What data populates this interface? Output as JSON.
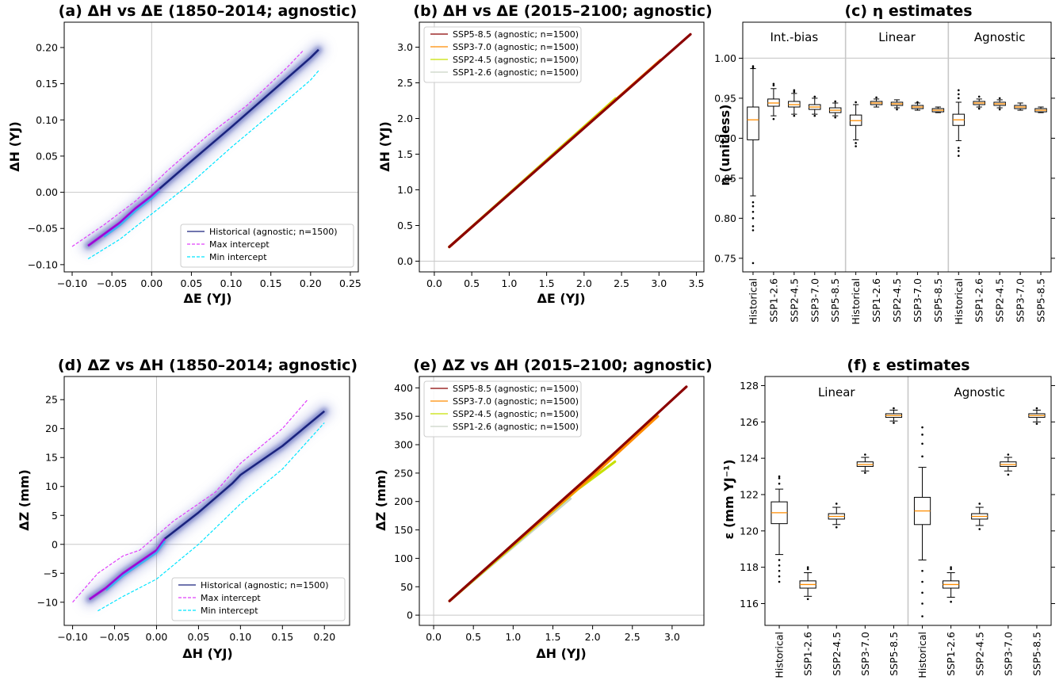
{
  "chart_data": [
    {
      "id": "a",
      "type": "scatter",
      "title": "(a) ΔH vs ΔE (1850–2014; agnostic)",
      "xlabel": "ΔE (YJ)",
      "ylabel": "ΔH (YJ)",
      "xlim": [
        -0.11,
        0.26
      ],
      "ylim": [
        -0.11,
        0.235
      ],
      "xticks": [
        -0.1,
        -0.05,
        0.0,
        0.05,
        0.1,
        0.15,
        0.2,
        0.25
      ],
      "xtick_labels": [
        "−0.10",
        "−0.05",
        "0.00",
        "0.05",
        "0.10",
        "0.15",
        "0.20",
        "0.25"
      ],
      "yticks": [
        -0.1,
        -0.05,
        0.0,
        0.05,
        0.1,
        0.15,
        0.2
      ],
      "ytick_labels": [
        "−0.10",
        "−0.05",
        "0.00",
        "0.05",
        "0.10",
        "0.15",
        "0.20"
      ],
      "legend_position": "lower-right",
      "series": [
        {
          "name": "Historical (agnostic; n=1500)",
          "color": "#1a237e",
          "x": [
            -0.08,
            -0.06,
            -0.04,
            -0.02,
            0.0,
            0.01,
            0.05,
            0.1,
            0.15,
            0.2,
            0.21
          ],
          "y": [
            -0.074,
            -0.058,
            -0.042,
            -0.022,
            -0.005,
            0.005,
            0.043,
            0.09,
            0.138,
            0.186,
            0.197
          ]
        },
        {
          "name": "Max intercept",
          "color": "#e040fb",
          "dash": "dashed",
          "x": [
            -0.1,
            -0.06,
            -0.02,
            0.02,
            0.07,
            0.12,
            0.17,
            0.19
          ],
          "y": [
            -0.075,
            -0.045,
            -0.012,
            0.03,
            0.078,
            0.12,
            0.172,
            0.195
          ]
        },
        {
          "name": "Min intercept",
          "color": "#00e5ff",
          "dash": "dashed",
          "x": [
            -0.08,
            -0.04,
            0.0,
            0.05,
            0.1,
            0.15,
            0.2,
            0.21
          ],
          "y": [
            -0.092,
            -0.065,
            -0.03,
            0.013,
            0.062,
            0.108,
            0.155,
            0.168
          ]
        }
      ]
    },
    {
      "id": "b",
      "type": "line",
      "title": "(b) ΔH vs ΔE (2015–2100; agnostic)",
      "xlabel": "ΔE (YJ)",
      "ylabel": "ΔH (YJ)",
      "xlim": [
        -0.2,
        3.6
      ],
      "ylim": [
        -0.15,
        3.35
      ],
      "xticks": [
        0.0,
        0.5,
        1.0,
        1.5,
        2.0,
        2.5,
        3.0,
        3.5
      ],
      "xtick_labels": [
        "0.0",
        "0.5",
        "1.0",
        "1.5",
        "2.0",
        "2.5",
        "3.0",
        "3.5"
      ],
      "yticks": [
        0.0,
        0.5,
        1.0,
        1.5,
        2.0,
        2.5,
        3.0
      ],
      "ytick_labels": [
        "0.0",
        "0.5",
        "1.0",
        "1.5",
        "2.0",
        "2.5",
        "3.0"
      ],
      "legend_position": "upper-left",
      "series": [
        {
          "name": "SSP5-8.5 (agnostic; n=1500)",
          "color": "#8b0000",
          "x": [
            0.2,
            3.42
          ],
          "y": [
            0.2,
            3.18
          ]
        },
        {
          "name": "SSP3-7.0 (agnostic; n=1500)",
          "color": "#ff8c00",
          "x": [
            0.2,
            3.02
          ],
          "y": [
            0.2,
            2.82
          ]
        },
        {
          "name": "SSP2-4.5 (agnostic; n=1500)",
          "color": "#c6e000",
          "x": [
            0.2,
            2.42
          ],
          "y": [
            0.2,
            2.28
          ]
        },
        {
          "name": "SSP1-2.6 (agnostic; n=1500)",
          "color": "#c9d4c5",
          "x": [
            0.2,
            1.82
          ],
          "y": [
            0.2,
            1.72
          ]
        }
      ]
    },
    {
      "id": "c",
      "type": "box",
      "title": "(c) η estimates",
      "xlabel": "",
      "ylabel": "η (unitless)",
      "ylim": [
        0.733,
        1.045
      ],
      "yticks": [
        0.75,
        0.8,
        0.85,
        0.9,
        0.95,
        1.0
      ],
      "ytick_labels": [
        "0.75",
        "0.80",
        "0.85",
        "0.90",
        "0.95",
        "1.00"
      ],
      "reference_line": 1.0,
      "groups": [
        {
          "label": "Int.-bias",
          "categories": [
            "Historical",
            "SSP1-2.6",
            "SSP2-4.5",
            "SSP3-7.0",
            "SSP5-8.5"
          ],
          "boxes": [
            {
              "q1": 0.898,
              "med": 0.923,
              "q3": 0.939,
              "wlo": 0.828,
              "whi": 0.987,
              "outliers": [
                0.744,
                0.785,
                0.79,
                0.8,
                0.808,
                0.815,
                0.82,
                0.988,
                0.99
              ]
            },
            {
              "q1": 0.94,
              "med": 0.944,
              "q3": 0.949,
              "wlo": 0.928,
              "whi": 0.962,
              "outliers": [
                0.924,
                0.966,
                0.968
              ]
            },
            {
              "q1": 0.939,
              "med": 0.942,
              "q3": 0.946,
              "wlo": 0.93,
              "whi": 0.956,
              "outliers": [
                0.928,
                0.958,
                0.96
              ]
            },
            {
              "q1": 0.936,
              "med": 0.939,
              "q3": 0.942,
              "wlo": 0.93,
              "whi": 0.95,
              "outliers": [
                0.928,
                0.952
              ]
            },
            {
              "q1": 0.932,
              "med": 0.935,
              "q3": 0.938,
              "wlo": 0.928,
              "whi": 0.944,
              "outliers": [
                0.926,
                0.946
              ]
            }
          ]
        },
        {
          "label": "Linear",
          "categories": [
            "Historical",
            "SSP1-2.6",
            "SSP2-4.5",
            "SSP3-7.0",
            "SSP5-8.5"
          ],
          "boxes": [
            {
              "q1": 0.916,
              "med": 0.922,
              "q3": 0.929,
              "wlo": 0.898,
              "whi": 0.942,
              "outliers": [
                0.89,
                0.894,
                0.945
              ]
            },
            {
              "q1": 0.942,
              "med": 0.944,
              "q3": 0.946,
              "wlo": 0.939,
              "whi": 0.949,
              "outliers": [
                0.951
              ]
            },
            {
              "q1": 0.941,
              "med": 0.943,
              "q3": 0.945,
              "wlo": 0.938,
              "whi": 0.948,
              "outliers": [
                0.936
              ]
            },
            {
              "q1": 0.937,
              "med": 0.939,
              "q3": 0.941,
              "wlo": 0.935,
              "whi": 0.944,
              "outliers": [
                0.945
              ]
            },
            {
              "q1": 0.933,
              "med": 0.935,
              "q3": 0.937,
              "wlo": 0.932,
              "whi": 0.939,
              "outliers": []
            }
          ]
        },
        {
          "label": "Agnostic",
          "categories": [
            "Historical",
            "SSP1-2.6",
            "SSP2-4.5",
            "SSP3-7.0",
            "SSP5-8.5"
          ],
          "boxes": [
            {
              "q1": 0.916,
              "med": 0.923,
              "q3": 0.93,
              "wlo": 0.897,
              "whi": 0.945,
              "outliers": [
                0.878,
                0.884,
                0.888,
                0.95,
                0.955,
                0.96
              ]
            },
            {
              "q1": 0.942,
              "med": 0.944,
              "q3": 0.946,
              "wlo": 0.939,
              "whi": 0.949,
              "outliers": [
                0.937,
                0.952
              ]
            },
            {
              "q1": 0.941,
              "med": 0.943,
              "q3": 0.945,
              "wlo": 0.938,
              "whi": 0.948,
              "outliers": [
                0.936,
                0.95
              ]
            },
            {
              "q1": 0.937,
              "med": 0.939,
              "q3": 0.941,
              "wlo": 0.935,
              "whi": 0.944,
              "outliers": []
            },
            {
              "q1": 0.933,
              "med": 0.935,
              "q3": 0.937,
              "wlo": 0.932,
              "whi": 0.939,
              "outliers": []
            }
          ]
        }
      ]
    },
    {
      "id": "d",
      "type": "scatter",
      "title": "(d) ΔZ vs ΔH (1850–2014; agnostic)",
      "xlabel": "ΔH (YJ)",
      "ylabel": "ΔZ (mm)",
      "xlim": [
        -0.11,
        0.23
      ],
      "ylim": [
        -14,
        29
      ],
      "xticks": [
        -0.1,
        -0.05,
        0.0,
        0.05,
        0.1,
        0.15,
        0.2
      ],
      "xtick_labels": [
        "−0.10",
        "−0.05",
        "0.00",
        "0.05",
        "0.10",
        "0.15",
        "0.20"
      ],
      "yticks": [
        -10,
        -5,
        0,
        5,
        10,
        15,
        20,
        25
      ],
      "ytick_labels": [
        "−10",
        "−5",
        "0",
        "5",
        "10",
        "15",
        "20",
        "25"
      ],
      "legend_position": "lower-right",
      "series": [
        {
          "name": "Historical (agnostic; n=1500)",
          "color": "#1a237e",
          "x": [
            -0.08,
            -0.06,
            -0.04,
            -0.02,
            0.0,
            0.01,
            0.05,
            0.09,
            0.1,
            0.15,
            0.2
          ],
          "y": [
            -9.5,
            -7.5,
            -5.0,
            -3.0,
            -1.0,
            1.0,
            5.5,
            10.5,
            12.0,
            17.0,
            23.0
          ]
        },
        {
          "name": "Max intercept",
          "color": "#e040fb",
          "dash": "dashed",
          "x": [
            -0.1,
            -0.07,
            -0.04,
            -0.02,
            0.02,
            0.07,
            0.1,
            0.15,
            0.18
          ],
          "y": [
            -10.0,
            -5.0,
            -2.0,
            -1.0,
            4.0,
            9.0,
            14.0,
            20.0,
            25.0
          ]
        },
        {
          "name": "Min intercept",
          "color": "#00e5ff",
          "dash": "dashed",
          "x": [
            -0.07,
            -0.04,
            0.0,
            0.05,
            0.1,
            0.15,
            0.2
          ],
          "y": [
            -11.5,
            -9.0,
            -6.0,
            0.0,
            7.0,
            13.0,
            21.0
          ]
        }
      ]
    },
    {
      "id": "e",
      "type": "line",
      "title": "(e) ΔZ vs ΔH (2015–2100; agnostic)",
      "xlabel": "ΔH (YJ)",
      "ylabel": "ΔZ (mm)",
      "xlim": [
        -0.18,
        3.4
      ],
      "ylim": [
        -18,
        420
      ],
      "xticks": [
        0.0,
        0.5,
        1.0,
        1.5,
        2.0,
        2.5,
        3.0
      ],
      "xtick_labels": [
        "0.0",
        "0.5",
        "1.0",
        "1.5",
        "2.0",
        "2.5",
        "3.0"
      ],
      "yticks": [
        0,
        50,
        100,
        150,
        200,
        250,
        300,
        350,
        400
      ],
      "ytick_labels": [
        "0",
        "50",
        "100",
        "150",
        "200",
        "250",
        "300",
        "350",
        "400"
      ],
      "legend_position": "upper-left",
      "series": [
        {
          "name": "SSP5-8.5 (agnostic; n=1500)",
          "color": "#8b0000",
          "x": [
            0.2,
            1.0,
            2.0,
            3.18
          ],
          "y": [
            25,
            125,
            250,
            402
          ]
        },
        {
          "name": "SSP3-7.0 (agnostic; n=1500)",
          "color": "#ff8c00",
          "x": [
            0.2,
            1.0,
            2.0,
            2.82
          ],
          "y": [
            25,
            124,
            245,
            350
          ]
        },
        {
          "name": "SSP2-4.5 (agnostic; n=1500)",
          "color": "#c6e000",
          "x": [
            0.2,
            1.0,
            1.8,
            2.28
          ],
          "y": [
            25,
            122,
            220,
            270
          ]
        },
        {
          "name": "SSP1-2.6 (agnostic; n=1500)",
          "color": "#c9d4c5",
          "x": [
            0.2,
            1.0,
            1.72
          ],
          "y": [
            25,
            120,
            205
          ]
        }
      ]
    },
    {
      "id": "f",
      "type": "box",
      "title": "(f) ε estimates",
      "xlabel": "",
      "ylabel": "ε (mm YJ⁻¹)",
      "ylim": [
        114.8,
        128.5
      ],
      "yticks": [
        116,
        118,
        120,
        122,
        124,
        126,
        128
      ],
      "ytick_labels": [
        "116",
        "118",
        "120",
        "122",
        "124",
        "126",
        "128"
      ],
      "groups": [
        {
          "label": "Linear",
          "categories": [
            "Historical",
            "SSP1-2.6",
            "SSP2-4.5",
            "SSP3-7.0",
            "SSP5-8.5"
          ],
          "boxes": [
            {
              "q1": 120.4,
              "med": 121.0,
              "q3": 121.6,
              "wlo": 118.7,
              "whi": 122.3,
              "outliers": [
                117.2,
                117.5,
                117.8,
                118.1,
                118.4,
                122.6,
                122.9,
                123.0
              ]
            },
            {
              "q1": 116.85,
              "med": 117.05,
              "q3": 117.25,
              "wlo": 116.4,
              "whi": 117.7,
              "outliers": [
                116.25,
                117.9,
                118.0
              ]
            },
            {
              "q1": 120.65,
              "med": 120.8,
              "q3": 120.95,
              "wlo": 120.35,
              "whi": 121.3,
              "outliers": [
                120.2,
                121.5
              ]
            },
            {
              "q1": 123.55,
              "med": 123.65,
              "q3": 123.8,
              "wlo": 123.3,
              "whi": 124.05,
              "outliers": [
                123.2,
                124.2
              ]
            },
            {
              "q1": 126.25,
              "med": 126.35,
              "q3": 126.45,
              "wlo": 126.05,
              "whi": 126.65,
              "outliers": [
                125.95,
                126.75
              ]
            }
          ]
        },
        {
          "label": "Agnostic",
          "categories": [
            "Historical",
            "SSP1-2.6",
            "SSP2-4.5",
            "SSP3-7.0",
            "SSP5-8.5"
          ],
          "boxes": [
            {
              "q1": 120.35,
              "med": 121.1,
              "q3": 121.85,
              "wlo": 118.4,
              "whi": 123.5,
              "outliers": [
                115.3,
                116.0,
                116.6,
                117.2,
                117.8,
                124.1,
                124.8,
                125.3,
                125.7
              ]
            },
            {
              "q1": 116.85,
              "med": 117.05,
              "q3": 117.25,
              "wlo": 116.35,
              "whi": 117.7,
              "outliers": [
                116.1,
                117.9,
                118.0
              ]
            },
            {
              "q1": 120.65,
              "med": 120.8,
              "q3": 120.95,
              "wlo": 120.3,
              "whi": 121.3,
              "outliers": [
                120.1,
                121.5
              ]
            },
            {
              "q1": 123.55,
              "med": 123.65,
              "q3": 123.8,
              "wlo": 123.3,
              "whi": 124.05,
              "outliers": [
                123.1,
                124.2
              ]
            },
            {
              "q1": 126.25,
              "med": 126.35,
              "q3": 126.45,
              "wlo": 126.0,
              "whi": 126.65,
              "outliers": [
                125.9,
                126.75
              ]
            }
          ]
        }
      ]
    }
  ]
}
